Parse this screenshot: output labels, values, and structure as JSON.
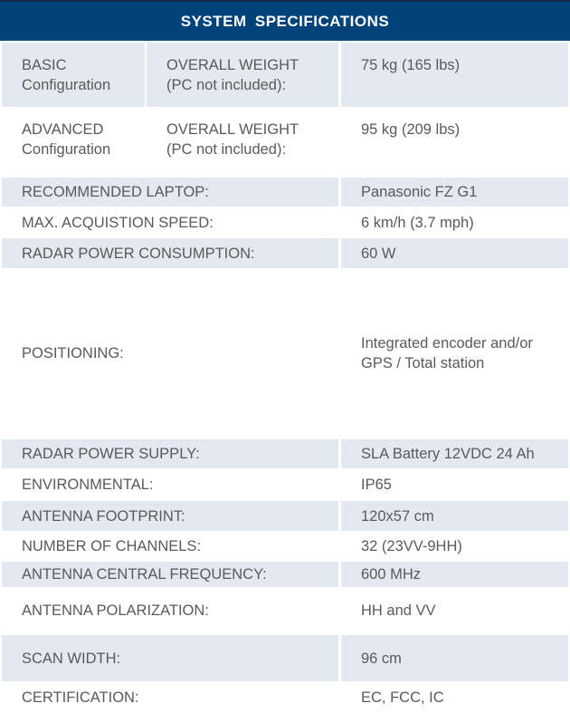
{
  "title": "SYSTEM  SPECIFICATIONS",
  "config_rows": [
    {
      "config_line1": "BASIC",
      "config_line2": "Configuration",
      "label_line1": "OVERALL WEIGHT",
      "label_line2": "(PC not included):",
      "value": "75 kg (165 lbs)"
    },
    {
      "config_line1": "ADVANCED",
      "config_line2": "Configuration",
      "label_line1": "OVERALL WEIGHT",
      "label_line2": "(PC not included):",
      "value": "95 kg (209 lbs)"
    }
  ],
  "rows": [
    {
      "label": "RECOMMENDED LAPTOP:",
      "value": "Panasonic FZ G1"
    },
    {
      "label": "MAX. ACQUISTION SPEED:",
      "value": "6 km/h  (3.7 mph)"
    },
    {
      "label": "RADAR POWER CONSUMPTION:",
      "value": "60 W"
    },
    {
      "label": "POSITIONING:",
      "value": "Integrated encoder and/or GPS / Total station"
    },
    {
      "label": "RADAR POWER SUPPLY:",
      "value": "SLA Battery 12VDC 24 Ah"
    },
    {
      "label": "ENVIRONMENTAL:",
      "value": "IP65"
    },
    {
      "label": "ANTENNA FOOTPRINT:",
      "value": "120x57 cm"
    },
    {
      "label": "NUMBER OF CHANNELS:",
      "value": "32 (23VV-9HH)"
    },
    {
      "label": "ANTENNA CENTRAL FREQUENCY:",
      "value": "600 MHz"
    },
    {
      "label": "ANTENNA POLARIZATION:",
      "value": "HH and VV"
    },
    {
      "label": "SCAN WIDTH:",
      "value": "96 cm"
    },
    {
      "label": "CERTIFICATION:",
      "value": "EC, FCC, IC"
    }
  ]
}
